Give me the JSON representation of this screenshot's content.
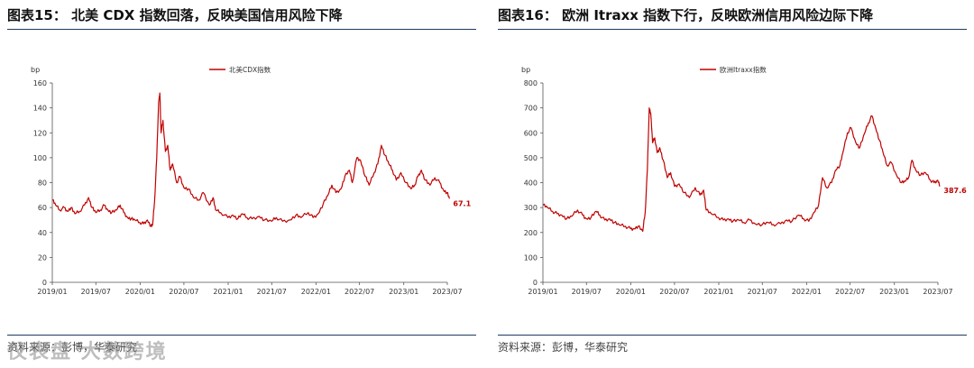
{
  "colors": {
    "series": "#c00000",
    "rule": "#1f3a5f",
    "axis": "#555555"
  },
  "watermark": "仪表盘 大数跨境",
  "panels": [
    {
      "title": "图表15： 北美 CDX 指数回落，反映美国信用风险下降",
      "source": "资料来源：彭博，华泰研究",
      "chart_data": {
        "type": "line",
        "unit_label": "bp",
        "ylim": [
          0,
          160
        ],
        "yticks": [
          0,
          20,
          40,
          60,
          80,
          100,
          120,
          140,
          160
        ],
        "xticks": [
          "2019/01",
          "2019/07",
          "2020/01",
          "2020/07",
          "2021/01",
          "2021/07",
          "2022/01",
          "2022/07",
          "2023/01",
          "2023/07"
        ],
        "legend": "北美CDX指数",
        "end_label": "67.1",
        "series": [
          {
            "name": "北美CDX指数",
            "points": [
              [
                "2019-01-02",
                66
              ],
              [
                "2019-01-15",
                62
              ],
              [
                "2019-02-01",
                58
              ],
              [
                "2019-02-20",
                60
              ],
              [
                "2019-03-05",
                57
              ],
              [
                "2019-03-20",
                60
              ],
              [
                "2019-04-05",
                55
              ],
              [
                "2019-04-25",
                57
              ],
              [
                "2019-05-15",
                62
              ],
              [
                "2019-06-01",
                68
              ],
              [
                "2019-06-15",
                60
              ],
              [
                "2019-07-01",
                56
              ],
              [
                "2019-07-20",
                58
              ],
              [
                "2019-08-05",
                62
              ],
              [
                "2019-08-20",
                58
              ],
              [
                "2019-09-05",
                56
              ],
              [
                "2019-09-25",
                58
              ],
              [
                "2019-10-10",
                62
              ],
              [
                "2019-10-25",
                56
              ],
              [
                "2019-11-10",
                52
              ],
              [
                "2019-11-25",
                51
              ],
              [
                "2019-12-10",
                50
              ],
              [
                "2019-12-31",
                48
              ],
              [
                "2020-01-15",
                47
              ],
              [
                "2020-01-31",
                50
              ],
              [
                "2020-02-15",
                45
              ],
              [
                "2020-02-22",
                46
              ],
              [
                "2020-03-01",
                65
              ],
              [
                "2020-03-10",
                100
              ],
              [
                "2020-03-18",
                145
              ],
              [
                "2020-03-23",
                152
              ],
              [
                "2020-03-28",
                120
              ],
              [
                "2020-04-05",
                130
              ],
              [
                "2020-04-15",
                105
              ],
              [
                "2020-04-25",
                110
              ],
              [
                "2020-05-05",
                90
              ],
              [
                "2020-05-15",
                95
              ],
              [
                "2020-06-01",
                80
              ],
              [
                "2020-06-15",
                85
              ],
              [
                "2020-07-01",
                76
              ],
              [
                "2020-07-20",
                75
              ],
              [
                "2020-08-10",
                68
              ],
              [
                "2020-09-01",
                66
              ],
              [
                "2020-09-20",
                72
              ],
              [
                "2020-10-15",
                62
              ],
              [
                "2020-10-30",
                68
              ],
              [
                "2020-11-10",
                58
              ],
              [
                "2020-12-01",
                56
              ],
              [
                "2020-12-31",
                52
              ],
              [
                "2021-01-20",
                54
              ],
              [
                "2021-02-10",
                51
              ],
              [
                "2021-03-01",
                55
              ],
              [
                "2021-03-20",
                52
              ],
              [
                "2021-04-10",
                51
              ],
              [
                "2021-05-10",
                53
              ],
              [
                "2021-06-01",
                50
              ],
              [
                "2021-07-01",
                49
              ],
              [
                "2021-07-20",
                52
              ],
              [
                "2021-08-15",
                49
              ],
              [
                "2021-09-15",
                50
              ],
              [
                "2021-10-10",
                54
              ],
              [
                "2021-10-30",
                52
              ],
              [
                "2021-11-30",
                56
              ],
              [
                "2021-12-20",
                52
              ],
              [
                "2022-01-10",
                55
              ],
              [
                "2022-01-31",
                63
              ],
              [
                "2022-02-20",
                70
              ],
              [
                "2022-03-08",
                78
              ],
              [
                "2022-03-25",
                72
              ],
              [
                "2022-04-15",
                75
              ],
              [
                "2022-05-01",
                85
              ],
              [
                "2022-05-20",
                90
              ],
              [
                "2022-06-01",
                80
              ],
              [
                "2022-06-20",
                100
              ],
              [
                "2022-07-05",
                98
              ],
              [
                "2022-07-25",
                85
              ],
              [
                "2022-08-10",
                78
              ],
              [
                "2022-08-31",
                88
              ],
              [
                "2022-09-15",
                95
              ],
              [
                "2022-09-30",
                110
              ],
              [
                "2022-10-15",
                102
              ],
              [
                "2022-10-31",
                95
              ],
              [
                "2022-11-15",
                90
              ],
              [
                "2022-12-01",
                82
              ],
              [
                "2022-12-20",
                88
              ],
              [
                "2023-01-10",
                80
              ],
              [
                "2023-01-31",
                75
              ],
              [
                "2023-02-15",
                78
              ],
              [
                "2023-03-01",
                85
              ],
              [
                "2023-03-15",
                90
              ],
              [
                "2023-03-31",
                82
              ],
              [
                "2023-04-20",
                78
              ],
              [
                "2023-05-10",
                84
              ],
              [
                "2023-05-31",
                80
              ],
              [
                "2023-06-15",
                74
              ],
              [
                "2023-06-30",
                72
              ],
              [
                "2023-07-10",
                67.1
              ]
            ]
          }
        ]
      }
    },
    {
      "title": "图表16： 欧洲 Itraxx 指数下行，反映欧洲信用风险边际下降",
      "source": "资料来源：彭博，华泰研究",
      "chart_data": {
        "type": "line",
        "unit_label": "bp",
        "ylim": [
          0,
          800
        ],
        "yticks": [
          0,
          100,
          200,
          300,
          400,
          500,
          600,
          700,
          800
        ],
        "xticks": [
          "2019/01",
          "2019/07",
          "2020/01",
          "2020/07",
          "2021/01",
          "2021/07",
          "2022/01",
          "2022/07",
          "2023/01",
          "2023/07"
        ],
        "legend": "欧洲Itraxx指数",
        "end_label": "387.6",
        "series": [
          {
            "name": "欧洲Itraxx指数",
            "points": [
              [
                "2019-01-02",
                310
              ],
              [
                "2019-01-20",
                300
              ],
              [
                "2019-02-10",
                285
              ],
              [
                "2019-03-01",
                275
              ],
              [
                "2019-03-20",
                270
              ],
              [
                "2019-04-10",
                255
              ],
              [
                "2019-05-01",
                265
              ],
              [
                "2019-05-25",
                290
              ],
              [
                "2019-06-15",
                270
              ],
              [
                "2019-07-01",
                255
              ],
              [
                "2019-07-20",
                260
              ],
              [
                "2019-08-10",
                285
              ],
              [
                "2019-08-25",
                270
              ],
              [
                "2019-09-15",
                250
              ],
              [
                "2019-10-05",
                255
              ],
              [
                "2019-10-25",
                240
              ],
              [
                "2019-11-15",
                230
              ],
              [
                "2019-12-10",
                225
              ],
              [
                "2019-12-31",
                215
              ],
              [
                "2020-01-15",
                215
              ],
              [
                "2020-02-01",
                225
              ],
              [
                "2020-02-20",
                205
              ],
              [
                "2020-03-01",
                280
              ],
              [
                "2020-03-10",
                450
              ],
              [
                "2020-03-18",
                700
              ],
              [
                "2020-03-24",
                680
              ],
              [
                "2020-04-01",
                560
              ],
              [
                "2020-04-10",
                580
              ],
              [
                "2020-04-20",
                520
              ],
              [
                "2020-05-01",
                540
              ],
              [
                "2020-05-15",
                490
              ],
              [
                "2020-06-01",
                420
              ],
              [
                "2020-06-15",
                440
              ],
              [
                "2020-07-01",
                385
              ],
              [
                "2020-07-20",
                395
              ],
              [
                "2020-08-10",
                360
              ],
              [
                "2020-09-01",
                340
              ],
              [
                "2020-09-25",
                380
              ],
              [
                "2020-10-15",
                350
              ],
              [
                "2020-10-30",
                370
              ],
              [
                "2020-11-10",
                290
              ],
              [
                "2020-12-01",
                275
              ],
              [
                "2020-12-31",
                260
              ],
              [
                "2021-01-20",
                250
              ],
              [
                "2021-02-10",
                255
              ],
              [
                "2021-03-01",
                245
              ],
              [
                "2021-03-25",
                250
              ],
              [
                "2021-04-15",
                240
              ],
              [
                "2021-05-10",
                250
              ],
              [
                "2021-06-01",
                235
              ],
              [
                "2021-07-01",
                232
              ],
              [
                "2021-07-25",
                240
              ],
              [
                "2021-08-15",
                232
              ],
              [
                "2021-09-15",
                235
              ],
              [
                "2021-10-10",
                250
              ],
              [
                "2021-11-01",
                245
              ],
              [
                "2021-11-30",
                270
              ],
              [
                "2021-12-20",
                255
              ],
              [
                "2022-01-10",
                245
              ],
              [
                "2022-01-31",
                280
              ],
              [
                "2022-02-20",
                310
              ],
              [
                "2022-03-08",
                420
              ],
              [
                "2022-03-25",
                380
              ],
              [
                "2022-04-15",
                400
              ],
              [
                "2022-05-01",
                450
              ],
              [
                "2022-05-20",
                470
              ],
              [
                "2022-06-01",
                520
              ],
              [
                "2022-06-20",
                600
              ],
              [
                "2022-07-05",
                620
              ],
              [
                "2022-07-25",
                560
              ],
              [
                "2022-08-10",
                540
              ],
              [
                "2022-08-31",
                600
              ],
              [
                "2022-09-15",
                640
              ],
              [
                "2022-09-30",
                668
              ],
              [
                "2022-10-15",
                620
              ],
              [
                "2022-10-31",
                570
              ],
              [
                "2022-11-15",
                520
              ],
              [
                "2022-12-01",
                470
              ],
              [
                "2022-12-20",
                480
              ],
              [
                "2023-01-10",
                430
              ],
              [
                "2023-01-31",
                400
              ],
              [
                "2023-02-15",
                405
              ],
              [
                "2023-03-01",
                420
              ],
              [
                "2023-03-15",
                490
              ],
              [
                "2023-03-31",
                450
              ],
              [
                "2023-04-20",
                430
              ],
              [
                "2023-05-10",
                440
              ],
              [
                "2023-05-31",
                410
              ],
              [
                "2023-06-15",
                400
              ],
              [
                "2023-06-30",
                410
              ],
              [
                "2023-07-10",
                387.6
              ]
            ]
          }
        ]
      }
    }
  ]
}
